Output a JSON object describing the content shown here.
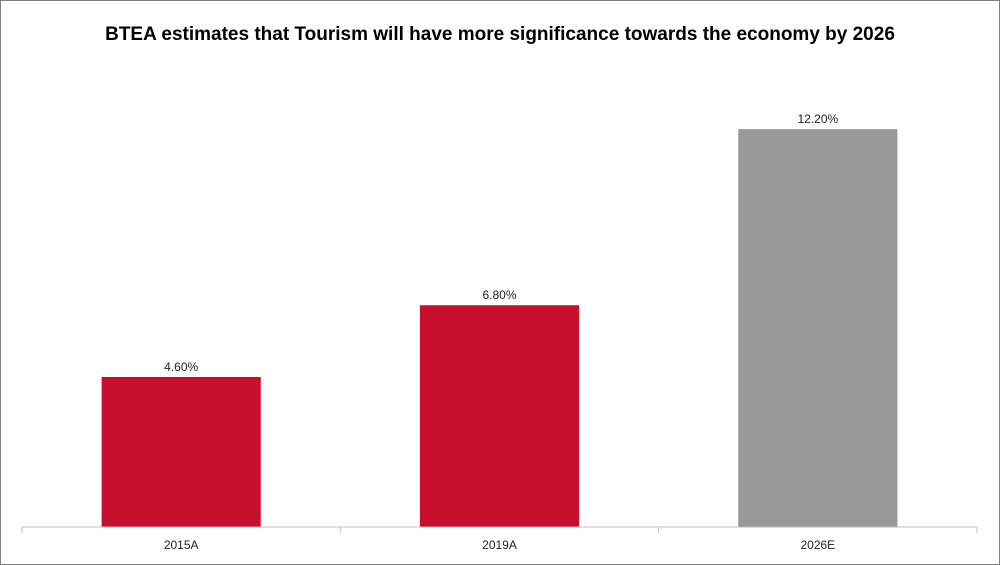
{
  "chart_data": {
    "type": "bar",
    "title": "BTEA estimates that Tourism will have more significance towards the economy by 2026",
    "categories": [
      "2015A",
      "2019A",
      "2026E"
    ],
    "values": [
      4.6,
      6.8,
      12.2
    ],
    "data_labels": [
      "4.60%",
      "6.80%",
      "12.20%"
    ],
    "unit": "%",
    "colors": [
      "#c8102e",
      "#c8102e",
      "#999999"
    ],
    "ylim": [
      0,
      13.4
    ],
    "grid": false,
    "legend": "none",
    "xlabel": "",
    "ylabel": ""
  }
}
